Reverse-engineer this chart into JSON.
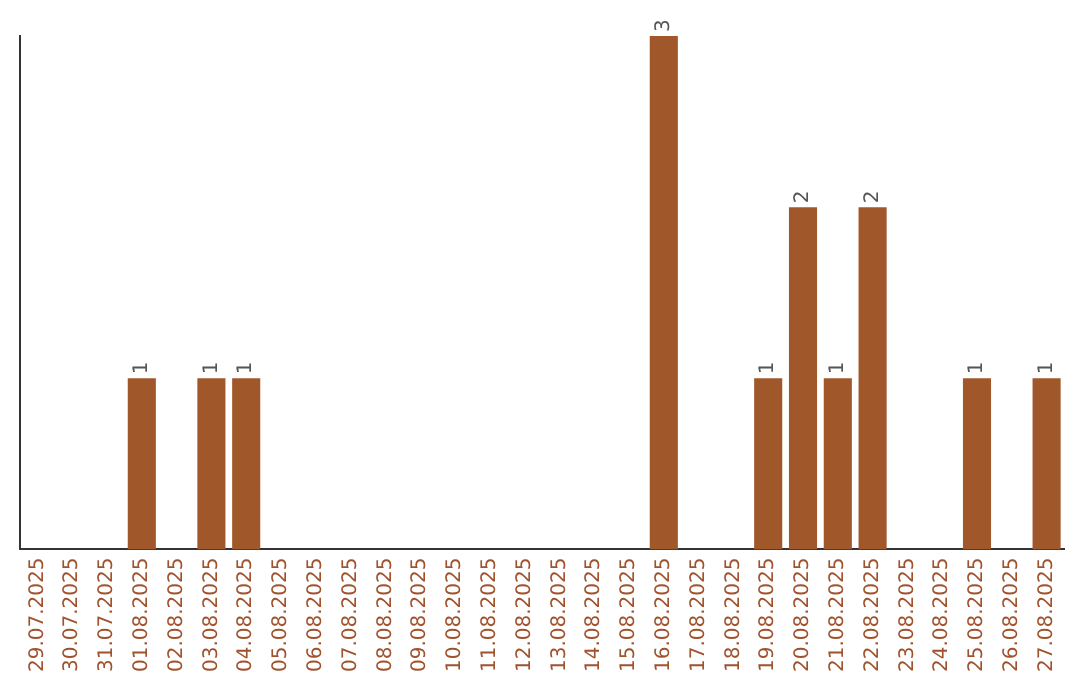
{
  "chart_data": {
    "type": "bar",
    "categories": [
      "29.07.2025",
      "30.07.2025",
      "31.07.2025",
      "01.08.2025",
      "02.08.2025",
      "03.08.2025",
      "04.08.2025",
      "05.08.2025",
      "06.08.2025",
      "07.08.2025",
      "08.08.2025",
      "09.08.2025",
      "10.08.2025",
      "11.08.2025",
      "12.08.2025",
      "13.08.2025",
      "14.08.2025",
      "15.08.2025",
      "16.08.2025",
      "17.08.2025",
      "18.08.2025",
      "19.08.2025",
      "20.08.2025",
      "21.08.2025",
      "22.08.2025",
      "23.08.2025",
      "24.08.2025",
      "25.08.2025",
      "26.08.2025",
      "27.08.2025"
    ],
    "values": [
      0,
      0,
      0,
      1,
      0,
      1,
      1,
      0,
      0,
      0,
      0,
      0,
      0,
      0,
      0,
      0,
      0,
      0,
      3,
      0,
      0,
      1,
      2,
      1,
      2,
      0,
      0,
      1,
      0,
      1
    ],
    "value_labels": [
      null,
      null,
      null,
      "1",
      null,
      "1",
      "1",
      null,
      null,
      null,
      null,
      null,
      null,
      null,
      null,
      null,
      null,
      null,
      "3",
      null,
      null,
      "1",
      "2",
      "1",
      "2",
      null,
      null,
      "1",
      null,
      "1"
    ],
    "color": "#a0572a",
    "tick_labels": "x",
    "grid": false,
    "legend": false
  }
}
